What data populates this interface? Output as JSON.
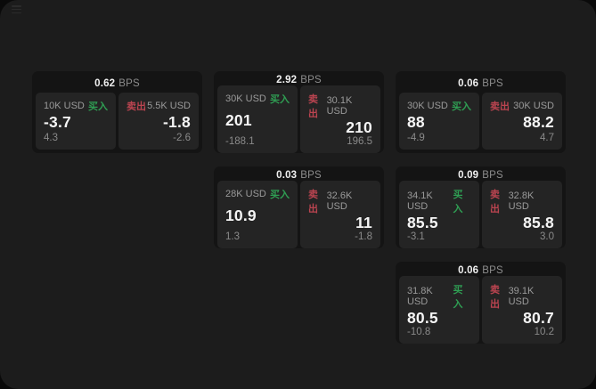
{
  "labels": {
    "bps_unit": "BPS",
    "buy": "买入",
    "sell": "卖出"
  },
  "colors": {
    "page_bg": "#1c1c1c",
    "card_bg": "#141414",
    "panel_bg": "#242424",
    "buy_green": "#2f9e53",
    "sell_red": "#bb4450"
  },
  "cards": [
    {
      "row": 1,
      "col": 1,
      "bps": "0.62",
      "buy": {
        "amount": "10K USD",
        "value": "-3.7",
        "delta": "4.3"
      },
      "sell": {
        "amount": "5.5K USD",
        "value": "-1.8",
        "delta": "-2.6"
      }
    },
    {
      "row": 1,
      "col": 2,
      "bps": "2.92",
      "buy": {
        "amount": "30K USD",
        "value": "201",
        "delta": "-188.1"
      },
      "sell": {
        "amount": "30.1K USD",
        "value": "210",
        "delta": "196.5"
      }
    },
    {
      "row": 1,
      "col": 3,
      "bps": "0.06",
      "buy": {
        "amount": "30K USD",
        "value": "88",
        "delta": "-4.9"
      },
      "sell": {
        "amount": "30K USD",
        "value": "88.2",
        "delta": "4.7"
      }
    },
    {
      "row": 2,
      "col": 2,
      "bps": "0.03",
      "buy": {
        "amount": "28K USD",
        "value": "10.9",
        "delta": "1.3"
      },
      "sell": {
        "amount": "32.6K USD",
        "value": "11",
        "delta": "-1.8"
      }
    },
    {
      "row": 2,
      "col": 3,
      "bps": "0.09",
      "buy": {
        "amount": "34.1K USD",
        "value": "85.5",
        "delta": "-3.1"
      },
      "sell": {
        "amount": "32.8K USD",
        "value": "85.8",
        "delta": "3.0"
      }
    },
    {
      "row": 3,
      "col": 3,
      "bps": "0.06",
      "buy": {
        "amount": "31.8K USD",
        "value": "80.5",
        "delta": "-10.8"
      },
      "sell": {
        "amount": "39.1K USD",
        "value": "80.7",
        "delta": "10.2"
      }
    }
  ]
}
